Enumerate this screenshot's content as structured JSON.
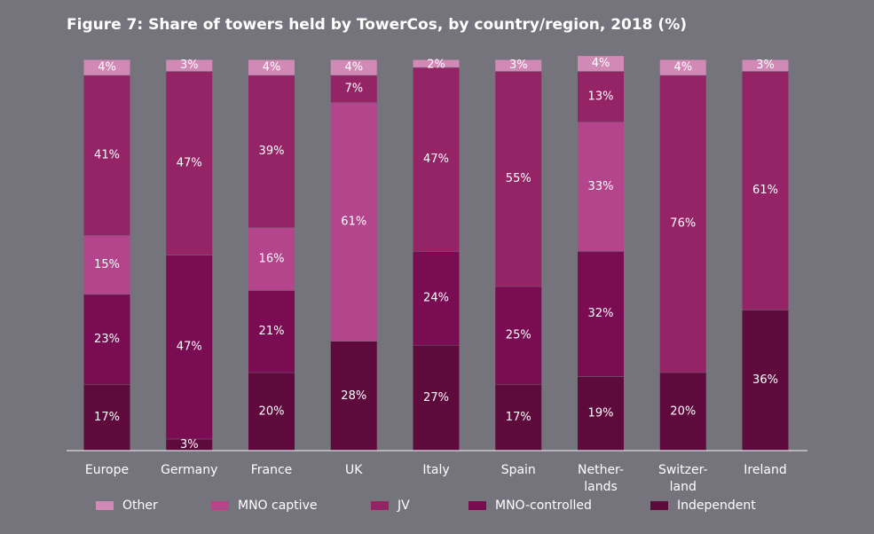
{
  "title": "Figure 7: Share of towers held by TowerCos, by country/region, 2018 (%)",
  "chart_data": {
    "type": "bar",
    "stacked": true,
    "ylim": [
      0,
      100
    ],
    "categories": [
      [
        "Europe"
      ],
      [
        "Germany"
      ],
      [
        "France"
      ],
      [
        "UK"
      ],
      [
        "Italy"
      ],
      [
        "Spain"
      ],
      [
        "Nether-",
        "lands"
      ],
      [
        "Switzer-",
        "land"
      ],
      [
        "Ireland"
      ]
    ],
    "series": [
      {
        "name": "Independent",
        "color": "#5e0a3c",
        "values": [
          17,
          3,
          20,
          28,
          27,
          17,
          19,
          20,
          36
        ]
      },
      {
        "name": "MNO-controlled",
        "color": "#790c52",
        "values": [
          23,
          47,
          21,
          0,
          24,
          25,
          32,
          0,
          0
        ]
      },
      {
        "name": "MNO captive",
        "color": "#b4448b",
        "values": [
          15,
          0,
          16,
          61,
          0,
          0,
          33,
          0,
          0
        ]
      },
      {
        "name": "JV",
        "color": "#952466",
        "values": [
          41,
          47,
          39,
          7,
          47,
          55,
          13,
          76,
          61
        ]
      },
      {
        "name": "Other",
        "color": "#d189b6",
        "values": [
          4,
          3,
          4,
          4,
          2,
          3,
          4,
          4,
          3
        ]
      }
    ],
    "legend_order": [
      "Other",
      "MNO captive",
      "JV",
      "MNO-controlled",
      "Independent"
    ],
    "legend_position": "bottom"
  }
}
